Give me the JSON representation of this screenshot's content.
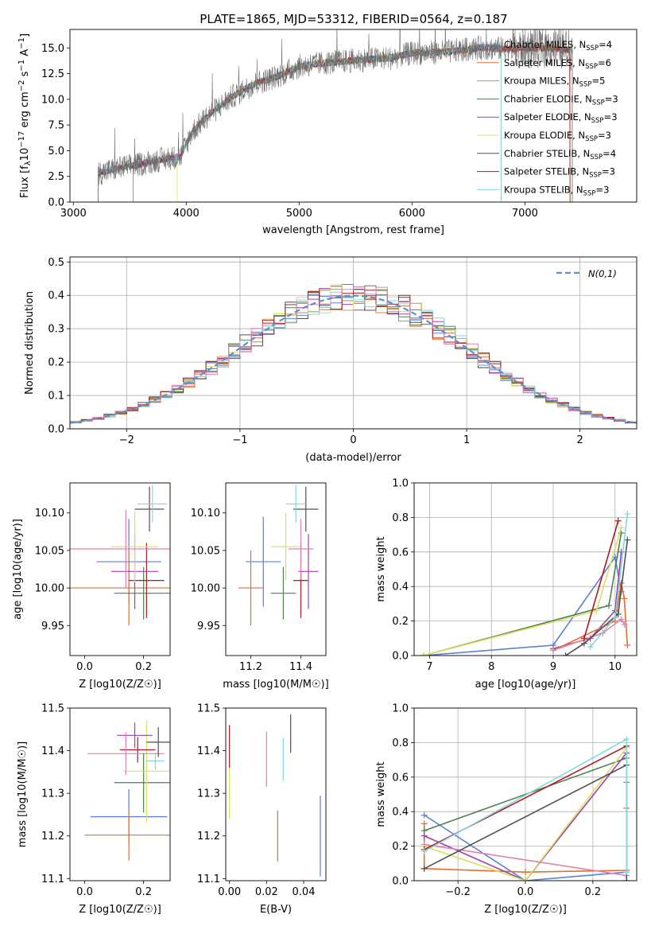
{
  "figure": {
    "title": "PLATE=1865, MJD=53312, FIBERID=0564, z=0.187"
  },
  "colors": {
    "Chabrier MILES": "#5b80d0",
    "Salpeter MILES": "#e07030",
    "Kroupa MILES": "#d9852a",
    "Chabrier ELODIE": "#4f8050",
    "Salpeter ELODIE": "#a040b0",
    "Kroupa ELODIE": "#d8e060",
    "Chabrier STELIB": "#505050",
    "Salpeter STELIB": "#b01820",
    "Kroupa STELIB": "#80d8e0",
    "pink": "#e080b0",
    "normal": "#5b8fd0"
  },
  "chart_data": [
    {
      "id": "spectrum",
      "type": "line",
      "xlabel": "wavelength [Angstrom, rest frame]",
      "ylabel": "Flux [f_λ10^-17 erg cm^-2 s^-1 A^-1]",
      "xlim": [
        2970,
        7990
      ],
      "ylim": [
        0,
        16.8
      ],
      "xticks": [
        3000,
        4000,
        5000,
        6000,
        7000
      ],
      "yticks": [
        0.0,
        2.5,
        5.0,
        7.5,
        10.0,
        12.5,
        15.0
      ],
      "grid": false,
      "legend_position": "right",
      "spectrum_shape": {
        "x": [
          3220,
          3400,
          3600,
          3800,
          3950,
          4050,
          4200,
          4400,
          4600,
          4800,
          5000,
          5200,
          5500,
          5800,
          6000,
          6300,
          6600,
          6900,
          7200,
          7400
        ],
        "y": [
          2.8,
          3.3,
          3.7,
          4.2,
          4.4,
          6.8,
          8.5,
          10.2,
          11.5,
          12.2,
          13.2,
          13.5,
          13.8,
          14.0,
          14.5,
          14.6,
          15.0,
          14.9,
          15.0,
          14.8
        ]
      },
      "legend": [
        {
          "label": "Chabrier MILES, N",
          "sub": "SSP",
          "n": "=4",
          "color": "#5b80d0"
        },
        {
          "label": "Salpeter MILES, N",
          "sub": "SSP",
          "n": "=6",
          "color": "#e07030"
        },
        {
          "label": "Kroupa MILES, N",
          "sub": "SSP",
          "n": "=5",
          "color": "#d9852a"
        },
        {
          "label": "Chabrier ELODIE, N",
          "sub": "SSP",
          "n": "=3",
          "color": "#4f8050"
        },
        {
          "label": "Salpeter ELODIE, N",
          "sub": "SSP",
          "n": "=3",
          "color": "#a040b0"
        },
        {
          "label": "Kroupa ELODIE, N",
          "sub": "SSP",
          "n": "=3",
          "color": "#d8e060"
        },
        {
          "label": "Chabrier STELIB, N",
          "sub": "SSP",
          "n": "=4",
          "color": "#505050"
        },
        {
          "label": "Salpeter STELIB, N",
          "sub": "SSP",
          "n": "=3",
          "color": "#b01820"
        },
        {
          "label": "Kroupa STELIB, N",
          "sub": "SSP",
          "n": "=3",
          "color": "#80d8e0"
        }
      ]
    },
    {
      "id": "residuals",
      "type": "histogram",
      "xlabel": "(data-model)/error",
      "ylabel": "Normed distribution",
      "xlim": [
        -2.5,
        2.5
      ],
      "ylim": [
        0,
        0.515
      ],
      "xticks": [
        -2,
        -1,
        0,
        1,
        2
      ],
      "yticks": [
        0.0,
        0.1,
        0.2,
        0.3,
        0.4,
        0.5
      ],
      "grid": true,
      "legend_position": "top-right",
      "legend": [
        {
          "label": "N(0,1)",
          "color": "#5b8fd0"
        }
      ],
      "bin_width": 0.1
    },
    {
      "id": "age_vs_Z",
      "type": "errorbar",
      "xlabel": "Z [log10(Z/Z☉)]",
      "ylabel": "age [log10(age/yr)]",
      "xlim": [
        -0.05,
        0.29
      ],
      "ylim": [
        9.91,
        10.14
      ],
      "xticks": [
        0.0,
        0.2
      ],
      "yticks": [
        9.95,
        10.0,
        10.05,
        10.1
      ],
      "grid": false,
      "points": [
        {
          "x": 0.15,
          "y": 10.035,
          "xerr": 0.11,
          "yerr": 0.057,
          "color": "#5b80d0"
        },
        {
          "x": 0.15,
          "y": 10.0,
          "xerr": 0.2,
          "yerr": 0.05,
          "color": "#e07030"
        },
        {
          "x": 0.2,
          "y": 9.993,
          "xerr": 0.1,
          "yerr": 0.035,
          "color": "#4f8050"
        },
        {
          "x": 0.21,
          "y": 10.01,
          "xerr": 0.06,
          "yerr": 0.05,
          "color": "#b01820"
        },
        {
          "x": 0.17,
          "y": 10.022,
          "xerr": 0.08,
          "yerr": 0.05,
          "color": "#a040b0"
        },
        {
          "x": 0.17,
          "y": 10.055,
          "xerr": 0.08,
          "yerr": 0.047,
          "color": "#d8e060"
        },
        {
          "x": 0.14,
          "y": 10.052,
          "xerr": 0.19,
          "yerr": 0.052,
          "color": "#e080b0"
        },
        {
          "x": 0.22,
          "y": 10.105,
          "xerr": 0.05,
          "yerr": 0.03,
          "color": "#505050"
        },
        {
          "x": 0.23,
          "y": 10.112,
          "xerr": 0.05,
          "yerr": 0.025,
          "color": "#80d8e0"
        }
      ]
    },
    {
      "id": "age_vs_mass",
      "type": "errorbar",
      "xlabel": "mass [log10(M/M☉)]",
      "ylabel": "",
      "xlim": [
        11.1,
        11.5
      ],
      "ylim": [
        9.91,
        10.14
      ],
      "xticks": [
        11.2,
        11.4
      ],
      "yticks": [
        9.95,
        10.0,
        10.05,
        10.1
      ],
      "grid": false,
      "points": [
        {
          "x": 11.25,
          "y": 10.035,
          "xerr": 0.07,
          "yerr": 0.06,
          "color": "#5b80d0"
        },
        {
          "x": 11.2,
          "y": 10.0,
          "xerr": 0.05,
          "yerr": 0.05,
          "color": "#e07030"
        },
        {
          "x": 11.33,
          "y": 9.993,
          "xerr": 0.05,
          "yerr": 0.035,
          "color": "#4f8050"
        },
        {
          "x": 11.4,
          "y": 10.01,
          "xerr": 0.03,
          "yerr": 0.05,
          "color": "#b01820"
        },
        {
          "x": 11.43,
          "y": 10.022,
          "xerr": 0.04,
          "yerr": 0.05,
          "color": "#a040b0"
        },
        {
          "x": 11.34,
          "y": 10.055,
          "xerr": 0.06,
          "yerr": 0.045,
          "color": "#d8e060"
        },
        {
          "x": 11.4,
          "y": 10.052,
          "xerr": 0.05,
          "yerr": 0.04,
          "color": "#e080b0"
        },
        {
          "x": 11.42,
          "y": 10.105,
          "xerr": 0.05,
          "yerr": 0.03,
          "color": "#505050"
        },
        {
          "x": 11.38,
          "y": 10.112,
          "xerr": 0.04,
          "yerr": 0.025,
          "color": "#80d8e0"
        }
      ]
    },
    {
      "id": "massweight_vs_age",
      "type": "line",
      "xlabel": "age [log10(age/yr)]",
      "ylabel": "mass weight",
      "xlim": [
        6.75,
        10.35
      ],
      "ylim": [
        0,
        1
      ],
      "xticks": [
        7,
        8,
        9,
        10
      ],
      "yticks": [
        0.0,
        0.2,
        0.4,
        0.6,
        0.8,
        1.0
      ],
      "grid": true,
      "series": [
        {
          "color": "#5b80d0",
          "x": [
            6.9,
            9.0,
            10.0,
            10.1
          ],
          "y": [
            0.0,
            0.06,
            0.57,
            0.37
          ]
        },
        {
          "color": "#4f8050",
          "x": [
            6.9,
            9.9,
            10.1
          ],
          "y": [
            0.0,
            0.29,
            0.71
          ]
        },
        {
          "color": "#d8e060",
          "x": [
            6.9,
            9.7,
            10.1
          ],
          "y": [
            0.0,
            0.26,
            0.74
          ]
        },
        {
          "color": "#a040b0",
          "x": [
            9.0,
            9.6,
            10.0,
            10.1
          ],
          "y": [
            0.04,
            0.1,
            0.26,
            0.6
          ]
        },
        {
          "color": "#e07030",
          "x": [
            9.0,
            10.0,
            10.1,
            10.15,
            10.2
          ],
          "y": [
            0.03,
            0.2,
            0.42,
            0.33,
            0.06
          ]
        },
        {
          "color": "#e080b0",
          "x": [
            9.0,
            9.8,
            10.1,
            10.15
          ],
          "y": [
            0.03,
            0.13,
            0.21,
            0.18
          ]
        },
        {
          "color": "#505050",
          "x": [
            9.2,
            9.5,
            10.05,
            10.2
          ],
          "y": [
            0.0,
            0.07,
            0.24,
            0.67
          ]
        },
        {
          "color": "#b01820",
          "x": [
            9.5,
            10.05
          ],
          "y": [
            0.1,
            0.78
          ]
        },
        {
          "color": "#80d8e0",
          "x": [
            9.6,
            10.0,
            10.2
          ],
          "y": [
            0.05,
            0.22,
            0.82
          ]
        }
      ]
    },
    {
      "id": "mass_vs_Z",
      "type": "errorbar",
      "xlabel": "Z [log10(Z/Z☉)]",
      "ylabel": "mass [log10(M/M☉)]",
      "xlim": [
        -0.05,
        0.29
      ],
      "ylim": [
        11.095,
        11.5
      ],
      "xticks": [
        0.0,
        0.2
      ],
      "yticks": [
        11.1,
        11.2,
        11.3,
        11.4,
        11.5
      ],
      "grid": false,
      "points": [
        {
          "x": 0.15,
          "y": 11.245,
          "xerr": 0.13,
          "yerr": 0.065,
          "color": "#5b80d0"
        },
        {
          "x": 0.15,
          "y": 11.202,
          "xerr": 0.15,
          "yerr": 0.06,
          "color": "#e07030"
        },
        {
          "x": 0.2,
          "y": 11.325,
          "xerr": 0.1,
          "yerr": 0.07,
          "color": "#4f8050"
        },
        {
          "x": 0.21,
          "y": 11.352,
          "xerr": 0.08,
          "yerr": 0.12,
          "color": "#d8e060"
        },
        {
          "x": 0.18,
          "y": 11.402,
          "xerr": 0.06,
          "yerr": 0.03,
          "color": "#b01820"
        },
        {
          "x": 0.17,
          "y": 11.436,
          "xerr": 0.06,
          "yerr": 0.03,
          "color": "#a040b0"
        },
        {
          "x": 0.14,
          "y": 11.393,
          "xerr": 0.13,
          "yerr": 0.05,
          "color": "#e080b0"
        },
        {
          "x": 0.25,
          "y": 11.42,
          "xerr": 0.04,
          "yerr": 0.035,
          "color": "#505050"
        },
        {
          "x": 0.24,
          "y": 11.376,
          "xerr": 0.03,
          "yerr": 0.02,
          "color": "#80d8e0"
        }
      ]
    },
    {
      "id": "mass_vs_EBV",
      "type": "errorbar",
      "xlabel": "E(B-V)",
      "ylabel": "",
      "xlim": [
        -0.002,
        0.052
      ],
      "ylim": [
        11.095,
        11.5
      ],
      "xticks": [
        0.0,
        0.02,
        0.04
      ],
      "yticks": [
        11.1,
        11.2,
        11.3,
        11.4,
        11.5
      ],
      "grid": false,
      "points": [
        {
          "x": 0.049,
          "y": 11.2,
          "xerr": 0.0,
          "yerr": 0.095,
          "color": "#5b80d0"
        },
        {
          "x": 0.026,
          "y": 11.2,
          "xerr": 0.0,
          "yerr": 0.06,
          "color": "#e07030"
        },
        {
          "x": 0.0,
          "y": 11.41,
          "xerr": 0.0,
          "yerr": 0.05,
          "color": "#b01820"
        },
        {
          "x": 0.0,
          "y": 11.3,
          "xerr": 0.0,
          "yerr": 0.06,
          "color": "#d8e060"
        },
        {
          "x": 0.02,
          "y": 11.38,
          "xerr": 0.0,
          "yerr": 0.065,
          "color": "#e080b0"
        },
        {
          "x": 0.029,
          "y": 11.38,
          "xerr": 0.0,
          "yerr": 0.05,
          "color": "#80d8e0"
        },
        {
          "x": 0.033,
          "y": 11.44,
          "xerr": 0.0,
          "yerr": 0.045,
          "color": "#505050"
        }
      ]
    },
    {
      "id": "massweight_vs_Z",
      "type": "line",
      "xlabel": "Z [log10(Z/Z☉)]",
      "ylabel": "mass weight",
      "xlim": [
        -0.33,
        0.33
      ],
      "ylim": [
        0,
        1
      ],
      "xticks": [
        -0.2,
        0.0,
        0.2
      ],
      "yticks": [
        0.0,
        0.2,
        0.4,
        0.6,
        0.8,
        1.0
      ],
      "grid": true,
      "series": [
        {
          "color": "#5b80d0",
          "x": [
            -0.3,
            0.0,
            0.3,
            0.3
          ],
          "y": [
            0.38,
            0.0,
            0.05,
            0.57
          ]
        },
        {
          "color": "#e07030",
          "x": [
            -0.3,
            -0.3,
            0.0,
            0.3,
            0.3
          ],
          "y": [
            0.33,
            0.07,
            0.05,
            0.06,
            0.42
          ]
        },
        {
          "color": "#4f8050",
          "x": [
            -0.3,
            0.3
          ],
          "y": [
            0.29,
            0.71
          ]
        },
        {
          "color": "#a040b0",
          "x": [
            -0.3,
            0.0,
            0.3
          ],
          "y": [
            0.26,
            0.0,
            0.74
          ]
        },
        {
          "color": "#d8e060",
          "x": [
            -0.3,
            0.0,
            0.3
          ],
          "y": [
            0.2,
            0.0,
            0.77
          ]
        },
        {
          "color": "#e080b0",
          "x": [
            -0.3,
            0.3
          ],
          "y": [
            0.21,
            0.03
          ]
        },
        {
          "color": "#505050",
          "x": [
            -0.3,
            0.3,
            0.3
          ],
          "y": [
            0.07,
            0.67,
            0.0
          ]
        },
        {
          "color": "#b01820",
          "x": [
            -0.3,
            0.3
          ],
          "y": [
            0.18,
            0.78
          ]
        },
        {
          "color": "#80d8e0",
          "x": [
            -0.3,
            0.3,
            0.3
          ],
          "y": [
            0.17,
            0.82,
            0.05
          ]
        }
      ]
    }
  ]
}
